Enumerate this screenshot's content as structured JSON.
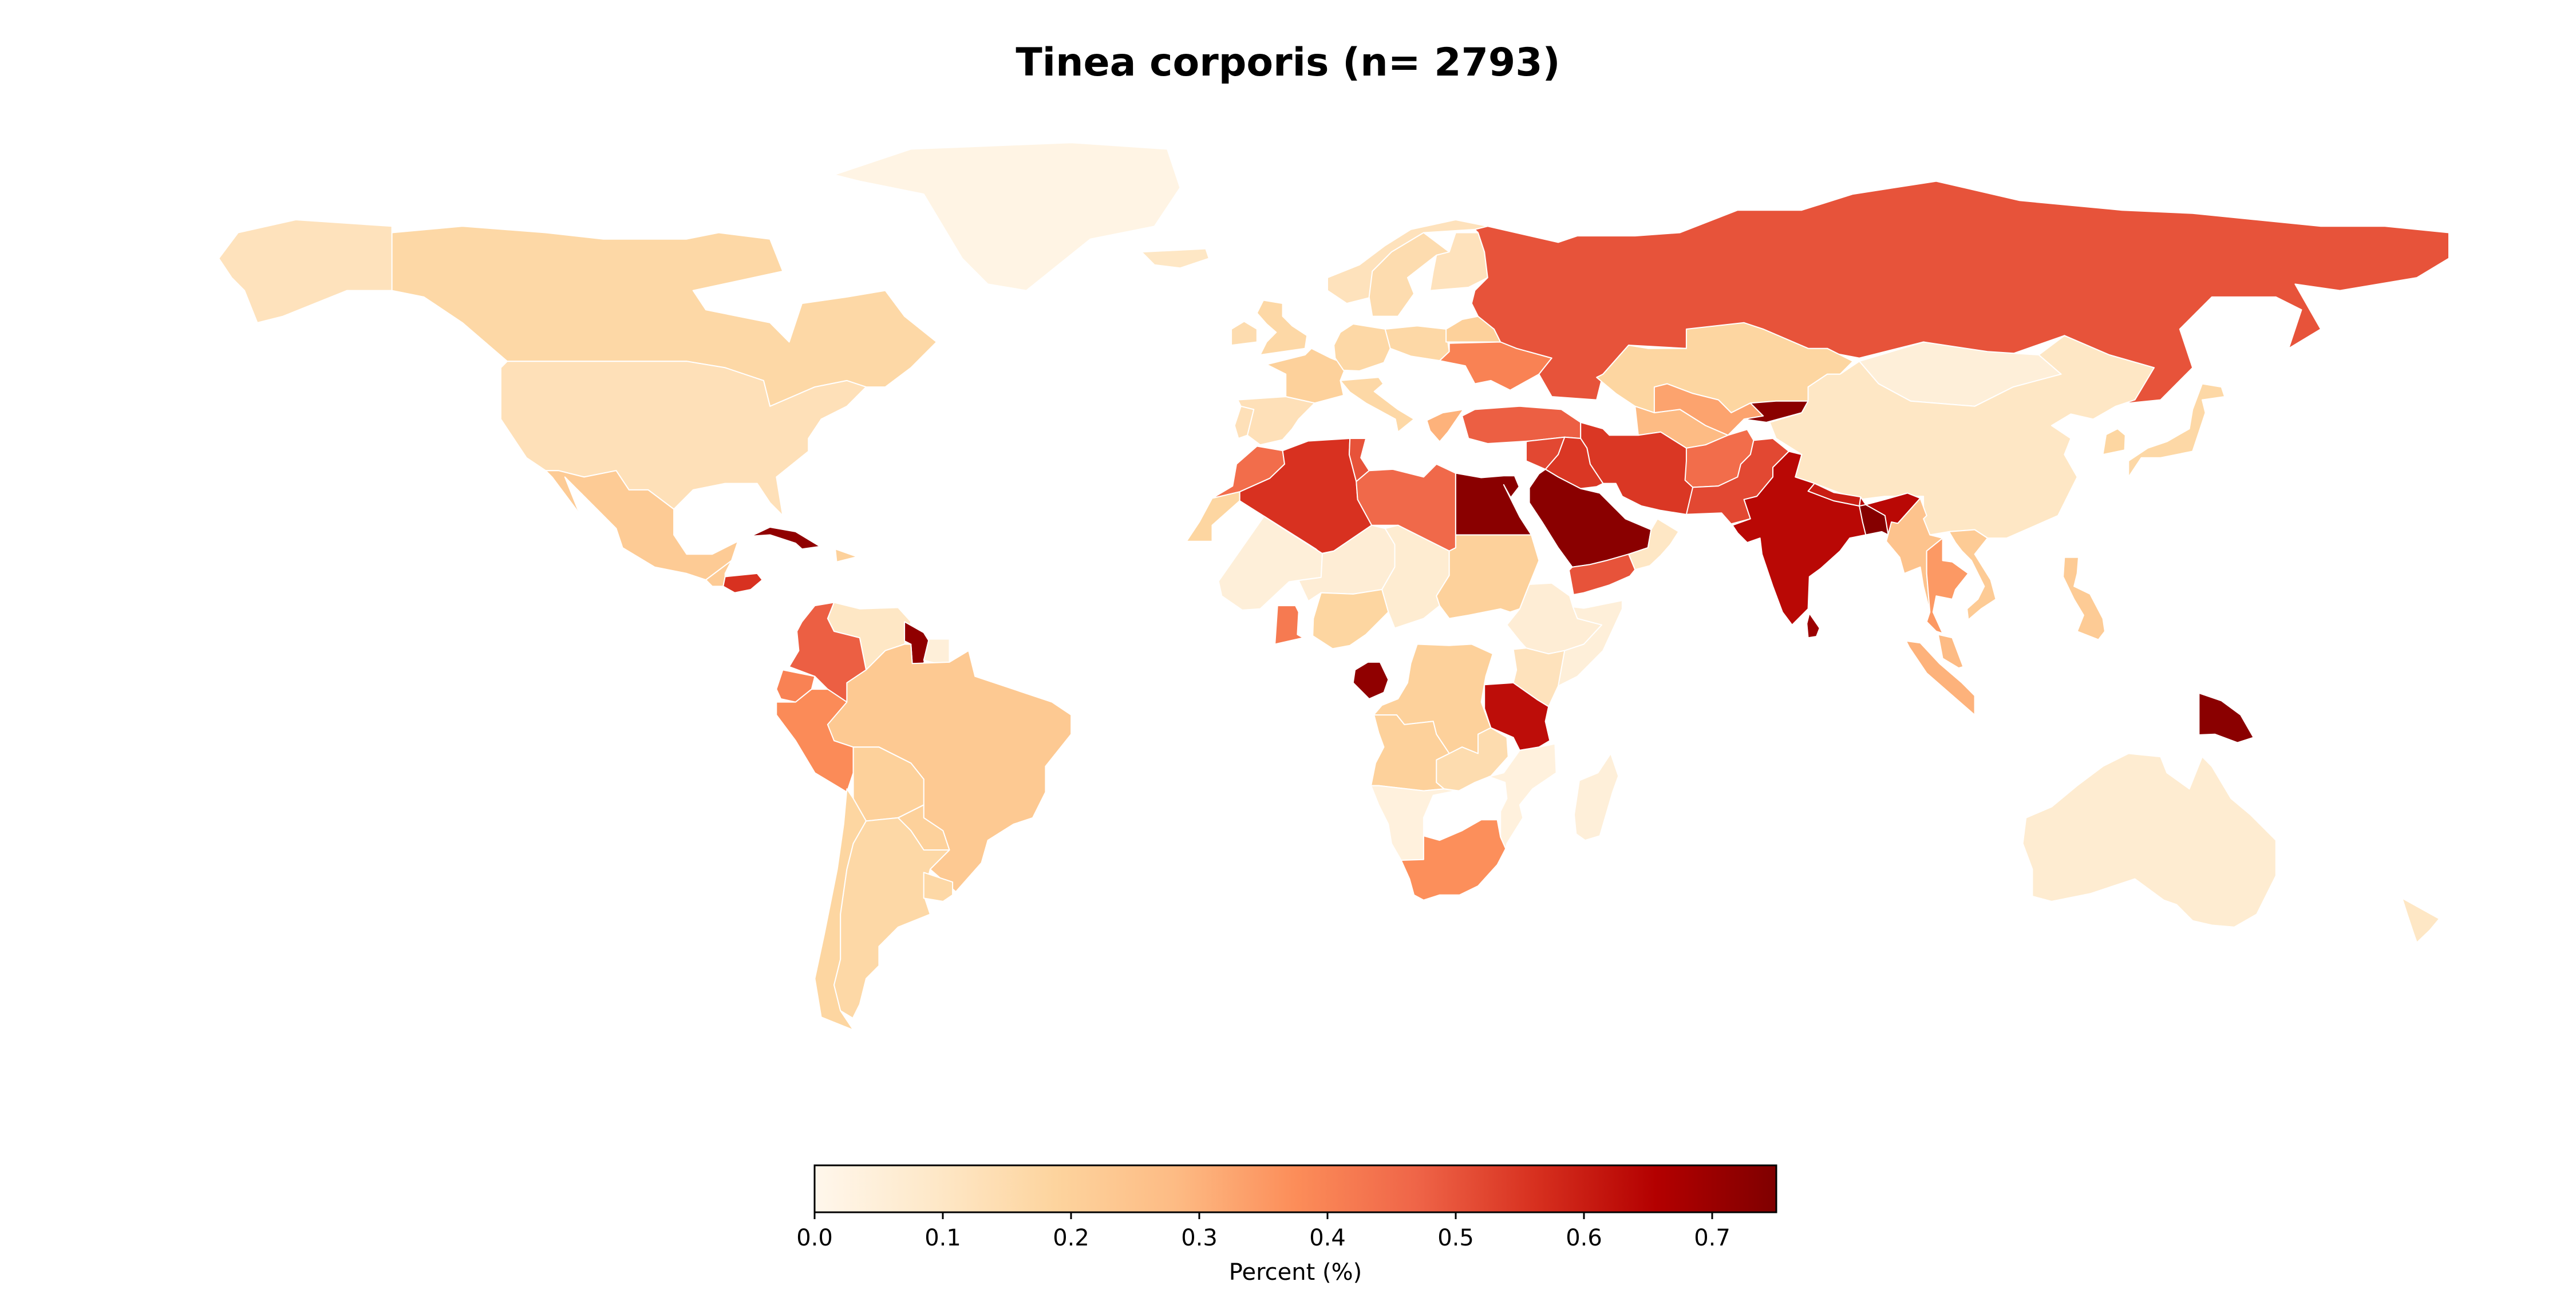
{
  "title": "Tinea corporis (n= 2793)",
  "colorbar": {
    "label": "Percent (%)",
    "min": 0.0,
    "max": 0.75,
    "ticks": [
      "0.0",
      "0.1",
      "0.2",
      "0.3",
      "0.4",
      "0.5",
      "0.6",
      "0.7"
    ],
    "colormap": "OrRd",
    "stops": [
      "#fff7ec",
      "#fee8c8",
      "#fdd49e",
      "#fdbb84",
      "#fc8d59",
      "#ef6548",
      "#d7301f",
      "#b30000",
      "#7f0000"
    ]
  },
  "map_data": {
    "type": "choropleth",
    "projection": "equirectangular",
    "countries": [
      {
        "name": "Canada",
        "value": 0.17
      },
      {
        "name": "United States",
        "value": 0.13
      },
      {
        "name": "Greenland",
        "value": 0.02
      },
      {
        "name": "Alaska",
        "value": 0.12
      },
      {
        "name": "Mexico",
        "value": 0.22
      },
      {
        "name": "Guatemala",
        "value": 0.22
      },
      {
        "name": "Honduras",
        "value": 0.56
      },
      {
        "name": "Cuba",
        "value": 0.72
      },
      {
        "name": "Dominican Republic",
        "value": 0.2
      },
      {
        "name": "Venezuela",
        "value": 0.1
      },
      {
        "name": "Colombia",
        "value": 0.48
      },
      {
        "name": "Guyana",
        "value": 0.72
      },
      {
        "name": "Suriname",
        "value": 0.05
      },
      {
        "name": "Ecuador",
        "value": 0.4
      },
      {
        "name": "Peru",
        "value": 0.38
      },
      {
        "name": "Brazil",
        "value": 0.23
      },
      {
        "name": "Bolivia",
        "value": 0.2
      },
      {
        "name": "Paraguay",
        "value": 0.2
      },
      {
        "name": "Chile",
        "value": 0.18
      },
      {
        "name": "Argentina",
        "value": 0.17
      },
      {
        "name": "Uruguay",
        "value": 0.17
      },
      {
        "name": "Iceland",
        "value": 0.1
      },
      {
        "name": "Norway",
        "value": 0.12
      },
      {
        "name": "Sweden",
        "value": 0.15
      },
      {
        "name": "Finland",
        "value": 0.12
      },
      {
        "name": "United Kingdom",
        "value": 0.17
      },
      {
        "name": "Ireland",
        "value": 0.15
      },
      {
        "name": "France",
        "value": 0.2
      },
      {
        "name": "Spain",
        "value": 0.13
      },
      {
        "name": "Portugal",
        "value": 0.13
      },
      {
        "name": "Germany",
        "value": 0.17
      },
      {
        "name": "Poland",
        "value": 0.17
      },
      {
        "name": "Italy",
        "value": 0.17
      },
      {
        "name": "Ukraine",
        "value": 0.4
      },
      {
        "name": "Belarus",
        "value": 0.2
      },
      {
        "name": "Greece",
        "value": 0.3
      },
      {
        "name": "Turkey",
        "value": 0.48
      },
      {
        "name": "Russia",
        "value": 0.5
      },
      {
        "name": "Kazakhstan",
        "value": 0.18
      },
      {
        "name": "Uzbekistan",
        "value": 0.33
      },
      {
        "name": "Turkmenistan",
        "value": 0.28
      },
      {
        "name": "Kyrgyzstan",
        "value": 0.73
      },
      {
        "name": "Mongolia",
        "value": 0.05
      },
      {
        "name": "China",
        "value": 0.1
      },
      {
        "name": "Japan",
        "value": 0.17
      },
      {
        "name": "South Korea",
        "value": 0.18
      },
      {
        "name": "Iran",
        "value": 0.55
      },
      {
        "name": "Iraq",
        "value": 0.55
      },
      {
        "name": "Syria",
        "value": 0.52
      },
      {
        "name": "Saudi Arabia",
        "value": 0.73
      },
      {
        "name": "Yemen",
        "value": 0.5
      },
      {
        "name": "Oman",
        "value": 0.1
      },
      {
        "name": "Afghanistan",
        "value": 0.45
      },
      {
        "name": "Pakistan",
        "value": 0.52
      },
      {
        "name": "India",
        "value": 0.64
      },
      {
        "name": "Nepal",
        "value": 0.6
      },
      {
        "name": "Bangladesh",
        "value": 0.74
      },
      {
        "name": "Sri Lanka",
        "value": 0.7
      },
      {
        "name": "Myanmar",
        "value": 0.25
      },
      {
        "name": "Thailand",
        "value": 0.35
      },
      {
        "name": "Vietnam",
        "value": 0.22
      },
      {
        "name": "Malaysia",
        "value": 0.28
      },
      {
        "name": "Indonesia",
        "value": 0.3
      },
      {
        "name": "Philippines",
        "value": 0.22
      },
      {
        "name": "Papua New Guinea",
        "value": 0.73
      },
      {
        "name": "Australia",
        "value": 0.07
      },
      {
        "name": "New Zealand",
        "value": 0.1
      },
      {
        "name": "Morocco",
        "value": 0.45
      },
      {
        "name": "Algeria",
        "value": 0.56
      },
      {
        "name": "Tunisia",
        "value": 0.5
      },
      {
        "name": "Libya",
        "value": 0.46
      },
      {
        "name": "Egypt",
        "value": 0.73
      },
      {
        "name": "Western Sahara",
        "value": 0.18
      },
      {
        "name": "Mali",
        "value": 0.05
      },
      {
        "name": "Niger",
        "value": 0.06
      },
      {
        "name": "Chad",
        "value": 0.07
      },
      {
        "name": "Sudan",
        "value": 0.2
      },
      {
        "name": "Ethiopia",
        "value": 0.06
      },
      {
        "name": "Somalia",
        "value": 0.05
      },
      {
        "name": "Nigeria",
        "value": 0.18
      },
      {
        "name": "Ghana",
        "value": 0.42
      },
      {
        "name": "Gabon",
        "value": 0.72
      },
      {
        "name": "DR Congo",
        "value": 0.2
      },
      {
        "name": "Kenya",
        "value": 0.12
      },
      {
        "name": "Tanzania",
        "value": 0.63
      },
      {
        "name": "Angola",
        "value": 0.2
      },
      {
        "name": "Zambia",
        "value": 0.15
      },
      {
        "name": "Mozambique",
        "value": 0.04
      },
      {
        "name": "Namibia",
        "value": 0.04
      },
      {
        "name": "South Africa",
        "value": 0.37
      },
      {
        "name": "Madagascar",
        "value": 0.05
      }
    ]
  }
}
